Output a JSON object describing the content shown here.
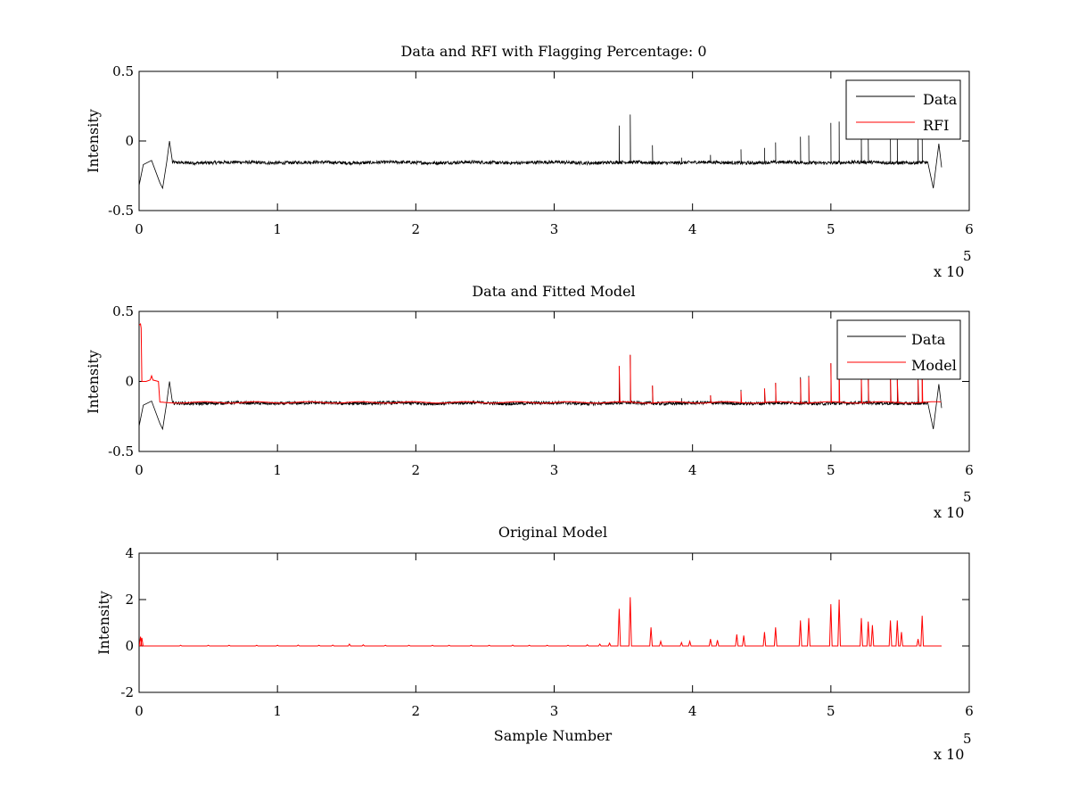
{
  "colors": {
    "data": "#000000",
    "rfi": "#ff0000",
    "model": "#ff0000",
    "original": "#ff0000"
  },
  "chart_data": [
    {
      "type": "line",
      "title": "Data and RFI with Flagging Percentage: 0",
      "xlabel": "",
      "ylabel": "Intensity",
      "xlim": [
        0,
        600000
      ],
      "ylim": [
        -0.5,
        0.5
      ],
      "xticks": [
        "0",
        "1",
        "2",
        "3",
        "4",
        "5",
        "6"
      ],
      "yticks": [
        "-0.5",
        "0",
        "0.5"
      ],
      "x_multiplier": {
        "base": "x 10",
        "exponent": "5"
      },
      "legend": {
        "position": "top-right",
        "entries": [
          "Data",
          "RFI"
        ]
      },
      "series": [
        {
          "name": "Data",
          "color": "#000000",
          "baseline": -0.155,
          "noise": 0.012,
          "x_start": 0,
          "x_end": 580000,
          "edge_features": [
            [
              0,
              -0.32
            ],
            [
              3000,
              -0.17
            ],
            [
              9000,
              -0.14
            ],
            [
              15000,
              -0.3
            ],
            [
              17000,
              -0.34
            ],
            [
              20000,
              -0.15
            ],
            [
              22000,
              0.0
            ],
            [
              24000,
              -0.14
            ],
            [
              570000,
              -0.15
            ],
            [
              574000,
              -0.34
            ],
            [
              578000,
              -0.02
            ],
            [
              580000,
              -0.19
            ]
          ],
          "spikes": [
            [
              347000,
              0.11
            ],
            [
              355000,
              0.19
            ],
            [
              371000,
              -0.03
            ],
            [
              392000,
              -0.12
            ],
            [
              413000,
              -0.1
            ],
            [
              435000,
              -0.06
            ],
            [
              452000,
              -0.05
            ],
            [
              460000,
              -0.01
            ],
            [
              478000,
              0.03
            ],
            [
              484000,
              0.04
            ],
            [
              500000,
              0.13
            ],
            [
              506000,
              0.14
            ],
            [
              522000,
              0.02
            ],
            [
              527000,
              0.04
            ],
            [
              543000,
              0.03
            ],
            [
              548000,
              0.02
            ],
            [
              563000,
              0.02
            ],
            [
              566000,
              0.08
            ]
          ]
        },
        {
          "name": "RFI",
          "color": "#ff0000",
          "values": []
        }
      ]
    },
    {
      "type": "line",
      "title": "Data and Fitted Model",
      "xlabel": "",
      "ylabel": "Intensity",
      "xlim": [
        0,
        600000
      ],
      "ylim": [
        -0.5,
        0.5
      ],
      "xticks": [
        "0",
        "1",
        "2",
        "3",
        "4",
        "5",
        "6"
      ],
      "yticks": [
        "-0.5",
        "0",
        "0.5"
      ],
      "x_multiplier": {
        "base": "x 10",
        "exponent": "5"
      },
      "legend": {
        "position": "top-right",
        "entries": [
          "Data",
          "Model"
        ]
      },
      "series": [
        {
          "name": "Data",
          "color": "#000000",
          "baseline": -0.155,
          "noise": 0.012,
          "x_start": 0,
          "x_end": 580000,
          "edge_features": [
            [
              0,
              -0.32
            ],
            [
              3000,
              -0.17
            ],
            [
              9000,
              -0.14
            ],
            [
              15000,
              -0.3
            ],
            [
              17000,
              -0.34
            ],
            [
              20000,
              -0.15
            ],
            [
              22000,
              0.0
            ],
            [
              24000,
              -0.14
            ],
            [
              570000,
              -0.15
            ],
            [
              574000,
              -0.34
            ],
            [
              578000,
              -0.02
            ],
            [
              580000,
              -0.19
            ]
          ],
          "spikes": [
            [
              347000,
              0.11
            ],
            [
              355000,
              0.19
            ],
            [
              371000,
              -0.03
            ],
            [
              392000,
              -0.12
            ],
            [
              413000,
              -0.1
            ],
            [
              435000,
              -0.06
            ],
            [
              452000,
              -0.05
            ],
            [
              460000,
              -0.01
            ],
            [
              478000,
              0.03
            ],
            [
              484000,
              0.04
            ],
            [
              500000,
              0.13
            ],
            [
              506000,
              0.14
            ],
            [
              522000,
              0.02
            ],
            [
              527000,
              0.04
            ],
            [
              543000,
              0.03
            ],
            [
              548000,
              0.02
            ],
            [
              563000,
              0.02
            ],
            [
              566000,
              0.08
            ]
          ]
        },
        {
          "name": "Model",
          "color": "#ff0000",
          "points": [
            [
              0,
              0.4
            ],
            [
              1000,
              0.41
            ],
            [
              1500,
              0.38
            ],
            [
              2000,
              0.0
            ],
            [
              5000,
              0.0
            ],
            [
              8000,
              0.01
            ],
            [
              9000,
              0.04
            ],
            [
              10000,
              0.01
            ],
            [
              14000,
              0.0
            ],
            [
              15000,
              -0.15
            ],
            [
              580000,
              -0.15
            ]
          ],
          "spikes": [
            [
              347000,
              0.11
            ],
            [
              355000,
              0.19
            ],
            [
              371000,
              -0.03
            ],
            [
              413000,
              -0.1
            ],
            [
              435000,
              -0.07
            ],
            [
              452000,
              -0.05
            ],
            [
              460000,
              -0.01
            ],
            [
              478000,
              0.02
            ],
            [
              484000,
              0.03
            ],
            [
              500000,
              0.13
            ],
            [
              506000,
              0.12
            ],
            [
              522000,
              0.02
            ],
            [
              527000,
              0.04
            ],
            [
              543000,
              0.04
            ],
            [
              548000,
              0.01
            ],
            [
              563000,
              0.01
            ],
            [
              566000,
              0.07
            ]
          ]
        }
      ]
    },
    {
      "type": "line",
      "title": "Original Model",
      "xlabel": "Sample Number",
      "ylabel": "Intensity",
      "xlim": [
        0,
        600000
      ],
      "ylim": [
        -2,
        4
      ],
      "xticks": [
        "0",
        "1",
        "2",
        "3",
        "4",
        "5",
        "6"
      ],
      "yticks": [
        "-2",
        "0",
        "2",
        "4"
      ],
      "x_multiplier": {
        "base": "x 10",
        "exponent": "5"
      },
      "series": [
        {
          "name": "Original Model",
          "color": "#ff0000",
          "baseline": 0,
          "x_start": 0,
          "x_end": 580000,
          "spikes": [
            [
              1000,
              0.4
            ],
            [
              2000,
              0.35
            ],
            [
              30000,
              0.03
            ],
            [
              50000,
              0.03
            ],
            [
              65000,
              0.03
            ],
            [
              85000,
              0.03
            ],
            [
              100000,
              0.03
            ],
            [
              115000,
              0.04
            ],
            [
              130000,
              0.03
            ],
            [
              140000,
              0.04
            ],
            [
              152000,
              0.08
            ],
            [
              162000,
              0.05
            ],
            [
              178000,
              0.03
            ],
            [
              195000,
              0.03
            ],
            [
              212000,
              0.03
            ],
            [
              224000,
              0.03
            ],
            [
              240000,
              0.03
            ],
            [
              253000,
              0.03
            ],
            [
              270000,
              0.04
            ],
            [
              282000,
              0.03
            ],
            [
              295000,
              0.03
            ],
            [
              310000,
              0.03
            ],
            [
              324000,
              0.05
            ],
            [
              333000,
              0.08
            ],
            [
              340000,
              0.12
            ],
            [
              347000,
              1.6
            ],
            [
              355000,
              2.1
            ],
            [
              370000,
              0.8
            ],
            [
              377000,
              0.2
            ],
            [
              392000,
              0.15
            ],
            [
              398000,
              0.2
            ],
            [
              413000,
              0.3
            ],
            [
              418000,
              0.25
            ],
            [
              432000,
              0.5
            ],
            [
              437000,
              0.45
            ],
            [
              452000,
              0.6
            ],
            [
              460000,
              0.8
            ],
            [
              478000,
              1.1
            ],
            [
              484000,
              1.2
            ],
            [
              500000,
              1.8
            ],
            [
              506000,
              2.0
            ],
            [
              522000,
              1.2
            ],
            [
              527000,
              1.05
            ],
            [
              530000,
              0.9
            ],
            [
              543000,
              1.1
            ],
            [
              548000,
              1.1
            ],
            [
              551000,
              0.6
            ],
            [
              563000,
              0.3
            ],
            [
              566000,
              1.3
            ]
          ]
        }
      ]
    }
  ]
}
